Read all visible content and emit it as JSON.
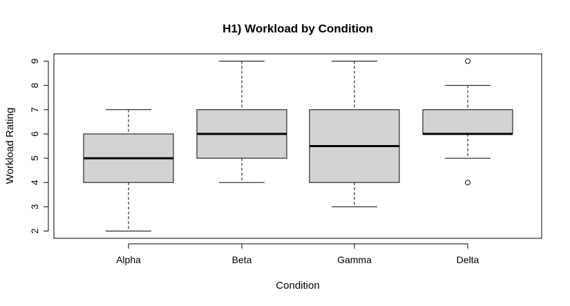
{
  "chart_data": {
    "type": "boxplot",
    "title": "H1) Workload by Condition",
    "xlabel": "Condition",
    "ylabel": "Workload Rating",
    "categories": [
      "Alpha",
      "Beta",
      "Gamma",
      "Delta"
    ],
    "boxes": [
      {
        "name": "Alpha",
        "whisker_low": 2,
        "q1": 4,
        "median": 5,
        "q3": 6,
        "whisker_high": 7,
        "outliers": []
      },
      {
        "name": "Beta",
        "whisker_low": 4,
        "q1": 5,
        "median": 6,
        "q3": 7,
        "whisker_high": 9,
        "outliers": []
      },
      {
        "name": "Gamma",
        "whisker_low": 3,
        "q1": 4,
        "median": 5.5,
        "q3": 7,
        "whisker_high": 9,
        "outliers": []
      },
      {
        "name": "Delta",
        "whisker_low": 5,
        "q1": 6,
        "median": 6,
        "q3": 7,
        "whisker_high": 8,
        "outliers": [
          4,
          9
        ]
      }
    ],
    "yticks": [
      2,
      3,
      4,
      5,
      6,
      7,
      8,
      9
    ],
    "ylim": [
      1.7,
      9.3
    ],
    "grid": false,
    "box_fill": "#d3d3d3",
    "line_color": "#000000"
  }
}
